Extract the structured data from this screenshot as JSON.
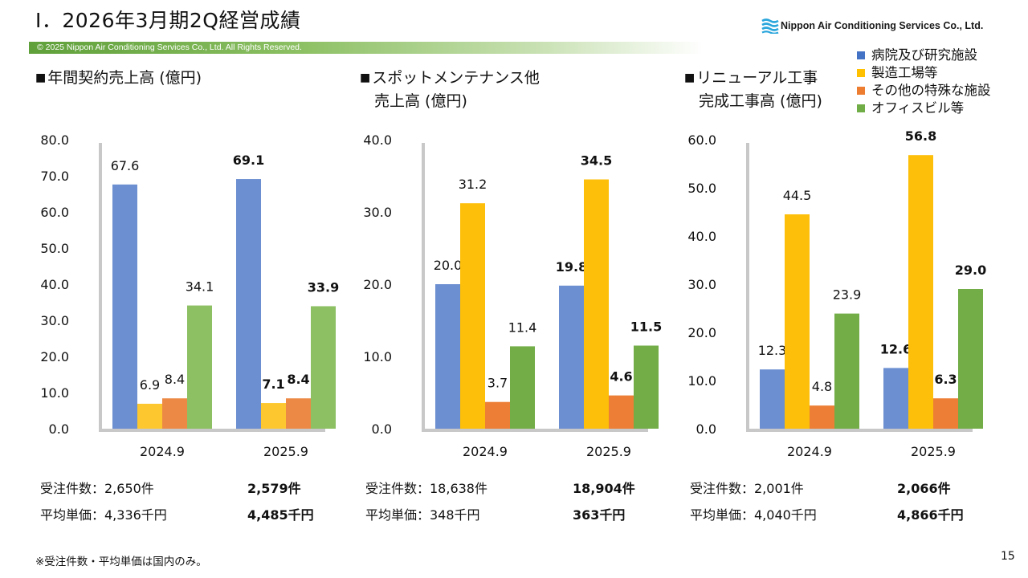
{
  "header": {
    "title": "Ⅰ．2026年3月期2Q経営成績",
    "copyright": "© 2025 Nippon Air Conditioning Services Co., Ltd. All Rights Reserved.",
    "logo_text": "Nippon Air Conditioning Services Co., Ltd."
  },
  "legend": [
    {
      "label": "病院及び研究施設",
      "color": "#6a8fd0"
    },
    {
      "label": "製造工場等",
      "color": "#fbbf0a"
    },
    {
      "label": "その他の特殊な施設",
      "color": "#ea8637"
    },
    {
      "label": "オフィスビル等",
      "color": "#76b04d"
    }
  ],
  "sections": [
    {
      "title_line1": "年間契約売上高 (億円)",
      "title_line2": "",
      "bullet": "■"
    },
    {
      "title_line1": "スポットメンテナンス他",
      "title_line2": "売上高 (億円)",
      "bullet": "■"
    },
    {
      "title_line1": "リニューアル工事",
      "title_line2": "完成工事高 (億円)",
      "bullet": "■"
    }
  ],
  "chart_data": [
    {
      "type": "bar",
      "title": "年間契約売上高 (億円)",
      "categories": [
        "2024.9",
        "2025.9"
      ],
      "ylim": [
        0,
        80
      ],
      "yticks": [
        "0.0",
        "10.0",
        "20.0",
        "30.0",
        "40.0",
        "50.0",
        "60.0",
        "70.0",
        "80.0"
      ],
      "series": [
        {
          "name": "病院及び研究施設",
          "values": [
            67.6,
            69.1
          ]
        },
        {
          "name": "製造工場等",
          "values": [
            6.9,
            7.1
          ]
        },
        {
          "name": "その他の特殊な施設",
          "values": [
            8.4,
            8.4
          ]
        },
        {
          "name": "オフィスビル等",
          "values": [
            34.1,
            33.9
          ]
        }
      ],
      "labels": [
        [
          "67.6",
          "6.9",
          "8.4",
          "34.1"
        ],
        [
          "69.1",
          "7.1",
          "8.4",
          "33.9"
        ]
      ],
      "bold_category": 1,
      "colors": [
        "#6c8fd1",
        "#fdc82f",
        "#ec8a45",
        "#8cc063"
      ]
    },
    {
      "type": "bar",
      "title": "スポットメンテナンス他 売上高 (億円)",
      "categories": [
        "2024.9",
        "2025.9"
      ],
      "ylim": [
        0,
        40
      ],
      "yticks": [
        "0.0",
        "10.0",
        "20.0",
        "30.0",
        "40.0"
      ],
      "series": [
        {
          "name": "病院及び研究施設",
          "values": [
            20.0,
            19.8
          ]
        },
        {
          "name": "製造工場等",
          "values": [
            31.2,
            34.5
          ]
        },
        {
          "name": "その他の特殊な施設",
          "values": [
            3.7,
            4.6
          ]
        },
        {
          "name": "オフィスビル等",
          "values": [
            11.4,
            11.5
          ]
        }
      ],
      "labels": [
        [
          "20.0",
          "31.2",
          "3.7",
          "11.4"
        ],
        [
          "19.8",
          "34.5",
          "4.6",
          "11.5"
        ]
      ],
      "bold_category": 1,
      "colors": [
        "#6c8fd1",
        "#fdbf09",
        "#ec7f35",
        "#72ad47"
      ]
    },
    {
      "type": "bar",
      "title": "リニューアル工事 完成工事高 (億円)",
      "categories": [
        "2024.9",
        "2025.9"
      ],
      "ylim": [
        0,
        60
      ],
      "yticks": [
        "0.0",
        "10.0",
        "20.0",
        "30.0",
        "40.0",
        "50.0",
        "60.0"
      ],
      "series": [
        {
          "name": "病院及び研究施設",
          "values": [
            12.3,
            12.6
          ]
        },
        {
          "name": "製造工場等",
          "values": [
            44.5,
            56.8
          ]
        },
        {
          "name": "その他の特殊な施設",
          "values": [
            4.8,
            6.3
          ]
        },
        {
          "name": "オフィスビル等",
          "values": [
            23.9,
            29.0
          ]
        }
      ],
      "labels": [
        [
          "12.3",
          "44.5",
          "4.8",
          "23.9"
        ],
        [
          "12.6",
          "56.8",
          "6.3",
          "29.0"
        ]
      ],
      "bold_category": 1,
      "colors": [
        "#6c8fd1",
        "#fdbf09",
        "#ec7f35",
        "#72ad47"
      ]
    }
  ],
  "stats": [
    {
      "orders_prev": "受注件数：2,650件",
      "orders_curr": "2,579件",
      "price_prev": "平均単価：4,336千円",
      "price_curr": "4,485千円"
    },
    {
      "orders_prev": "受注件数：18,638件",
      "orders_curr": "18,904件",
      "price_prev": "平均単価：348千円",
      "price_curr": "363千円"
    },
    {
      "orders_prev": "受注件数：2,001件",
      "orders_curr": "2,066件",
      "price_prev": "平均単価：4,040千円",
      "price_curr": "4,866千円"
    }
  ],
  "footnote": "※受注件数・平均単価は国内のみ。",
  "page_number": "15"
}
